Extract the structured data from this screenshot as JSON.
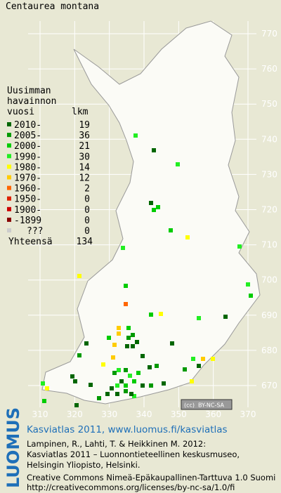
{
  "title": "Centaurea montana",
  "map": {
    "y_labels": [
      770,
      760,
      750,
      740,
      730,
      720,
      710,
      700,
      690,
      680,
      670
    ],
    "x_labels": [
      310,
      320,
      330,
      340,
      350,
      360,
      370
    ]
  },
  "legend": {
    "heading": [
      "Uusimman",
      "havainnon",
      "vuosi"
    ],
    "count_heading": "lkm",
    "entries": [
      {
        "label": "2010-",
        "count": 19,
        "color": "#006600"
      },
      {
        "label": "2005-",
        "count": 36,
        "color": "#009900"
      },
      {
        "label": "2000-",
        "count": 21,
        "color": "#00cc00"
      },
      {
        "label": "1990-",
        "count": 30,
        "color": "#22ee22"
      },
      {
        "label": "1980-",
        "count": 14,
        "color": "#ffff00"
      },
      {
        "label": "1970-",
        "count": 12,
        "color": "#ffcc00"
      },
      {
        "label": "1960-",
        "count": 2,
        "color": "#ff6600"
      },
      {
        "label": "1950-",
        "count": 0,
        "color": "#dd2200"
      },
      {
        "label": "1900-",
        "count": 0,
        "color": "#cc0000"
      },
      {
        "label": "-1899",
        "count": 0,
        "color": "#880000"
      },
      {
        "label": "???",
        "count": 0,
        "color": "#cccccc"
      }
    ],
    "total_label": "Yhteensä",
    "total": 134
  },
  "license_badge": {
    "cc": "(cc)",
    "terms": "BY-NC-SA"
  },
  "footer": {
    "logo": "LUOMUS",
    "link": "Kasviatlas 2011, www.luomus.fi/kasviatlas",
    "citation": [
      "Lampinen, R., Lahti, T. & Heikkinen M. 2012:",
      "Kasviatlas 2011 – Luonnontieteellinen keskusmuseo,",
      "Helsingin Yliopisto, Helsinki."
    ],
    "license": [
      "Creative Commons Nimeä-Epäkaupallinen-Tarttuva 1.0 Suomi",
      "http://creativecommons.org/licenses/by-nc-sa/1.0/fi"
    ]
  }
}
